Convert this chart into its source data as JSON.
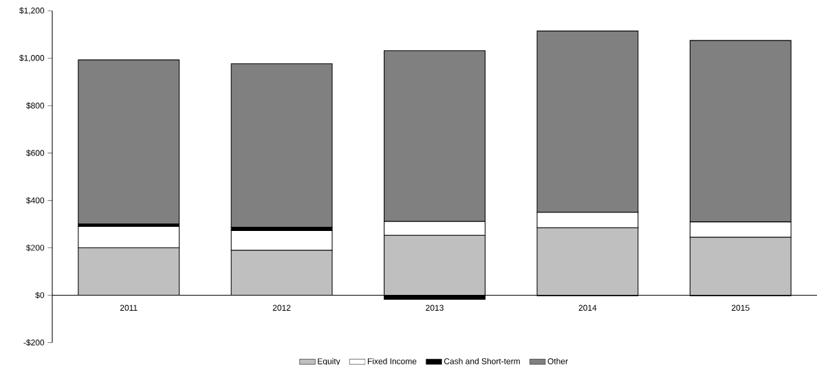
{
  "chart_data": {
    "type": "bar",
    "stacked": true,
    "categories": [
      "2011",
      "2012",
      "2013",
      "2014",
      "2015"
    ],
    "series": [
      {
        "name": "Equity",
        "color": "#bfbfbf",
        "values": [
          200,
          190,
          253,
          285,
          245
        ]
      },
      {
        "name": "Fixed Income",
        "color": "#ffffff",
        "values": [
          91,
          83,
          59,
          65,
          65
        ]
      },
      {
        "name": "Cash and Short-term",
        "color": "#000000",
        "values": [
          10,
          14,
          -17,
          -2,
          -2
        ]
      },
      {
        "name": "Other",
        "color": "#808080",
        "values": [
          692,
          690,
          720,
          765,
          765
        ]
      }
    ],
    "ylim": [
      -200,
      1200
    ],
    "yticks": [
      {
        "value": -200,
        "label": "-$200"
      },
      {
        "value": 0,
        "label": "$0"
      },
      {
        "value": 200,
        "label": "$200"
      },
      {
        "value": 400,
        "label": "$400"
      },
      {
        "value": 600,
        "label": "$600"
      },
      {
        "value": 800,
        "label": "$800"
      },
      {
        "value": 1000,
        "label": "$1,000"
      },
      {
        "value": 1200,
        "label": "$1,200"
      }
    ],
    "grid": false,
    "legend": "bottom"
  }
}
